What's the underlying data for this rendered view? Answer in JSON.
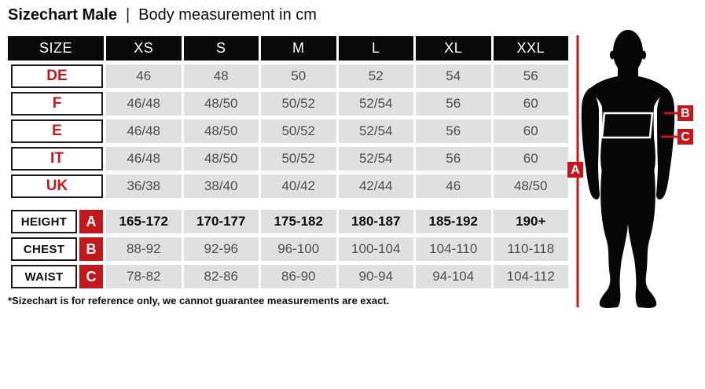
{
  "title": {
    "main": "Sizechart Male",
    "separator": "|",
    "subtitle": "Body measurement in cm"
  },
  "chart_data": {
    "type": "table",
    "title": "Sizechart Male | Body measurement in cm",
    "units": "cm",
    "columns": [
      "SIZE",
      "XS",
      "S",
      "M",
      "L",
      "XL",
      "XXL"
    ],
    "rows": [
      {
        "label": "DE",
        "values": [
          "46",
          "48",
          "50",
          "52",
          "54",
          "56"
        ]
      },
      {
        "label": "F",
        "values": [
          "46/48",
          "48/50",
          "50/52",
          "52/54",
          "56",
          "60"
        ]
      },
      {
        "label": "E",
        "values": [
          "46/48",
          "48/50",
          "50/52",
          "52/54",
          "56",
          "60"
        ]
      },
      {
        "label": "IT",
        "values": [
          "46/48",
          "48/50",
          "50/52",
          "52/54",
          "56",
          "60"
        ]
      },
      {
        "label": "UK",
        "values": [
          "36/38",
          "38/40",
          "40/42",
          "42/44",
          "46",
          "48/50"
        ]
      }
    ],
    "measurement_rows": [
      {
        "label": "HEIGHT",
        "marker": "A",
        "bold": true,
        "values": [
          "165-172",
          "170-177",
          "175-182",
          "180-187",
          "185-192",
          "190+"
        ]
      },
      {
        "label": "CHEST",
        "marker": "B",
        "bold": false,
        "values": [
          "88-92",
          "92-96",
          "96-100",
          "100-104",
          "104-110",
          "110-118"
        ]
      },
      {
        "label": "WAIST",
        "marker": "C",
        "bold": false,
        "values": [
          "78-82",
          "82-86",
          "86-90",
          "90-94",
          "94-104",
          "104-112"
        ]
      }
    ]
  },
  "figure": {
    "markers": [
      "A",
      "B",
      "C"
    ]
  },
  "footnote": "*Sizechart is for reference only, we cannot guarantee measurements are exact.",
  "colors": {
    "accent_red": "#c4161d",
    "cell_gray": "#e0e0e0",
    "header_black": "#0a0a0a",
    "cell_text": "#4d4d4d"
  }
}
